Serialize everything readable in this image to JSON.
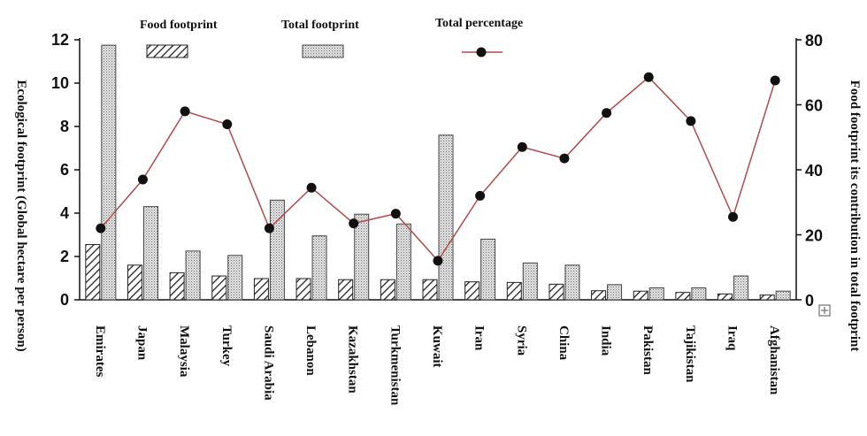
{
  "chart_data": {
    "type": "bar",
    "categories": [
      "Emirates",
      "Japan",
      "Malaysia",
      "Turkey",
      "Saudi Arabia",
      "Lebanon",
      "Kazakhstan",
      "Turkmenistan",
      "Kuwait",
      "Iran",
      "Syria",
      "China",
      "India",
      "Pakistan",
      "Tajikistan",
      "Iraq",
      "Afghanistan"
    ],
    "series": [
      {
        "name": "Food footprint",
        "axis": "left",
        "kind": "bar",
        "pattern": "diagonal-hatch",
        "values": [
          2.55,
          1.6,
          1.25,
          1.1,
          0.98,
          0.98,
          0.93,
          0.93,
          0.93,
          0.83,
          0.8,
          0.72,
          0.42,
          0.4,
          0.34,
          0.27,
          0.22
        ]
      },
      {
        "name": "Total footprint",
        "axis": "left",
        "kind": "bar",
        "pattern": "dotted",
        "values": [
          11.75,
          4.3,
          2.25,
          2.05,
          4.6,
          2.95,
          3.95,
          3.5,
          7.6,
          2.8,
          1.7,
          1.6,
          0.7,
          0.55,
          0.55,
          1.1,
          0.4
        ]
      },
      {
        "name": "Total percentage",
        "axis": "right",
        "kind": "line",
        "color": "#b14a4a",
        "marker": "circle",
        "values": [
          22,
          37,
          58,
          54,
          22,
          34.5,
          23.5,
          26.5,
          12,
          32,
          47,
          43.5,
          57.5,
          68.5,
          55,
          25.5,
          67.5
        ]
      }
    ],
    "ylabel": "Ecological footprint (Global hectare per person)",
    "y2label": "Food footprint its contribution in total footprint",
    "ylim": [
      0,
      12
    ],
    "y2lim": [
      0,
      80
    ],
    "yticks": [
      0,
      2,
      4,
      6,
      8,
      10,
      12
    ],
    "y2ticks": [
      0,
      20,
      40,
      60,
      80
    ],
    "grid": false,
    "legend_position": "top"
  }
}
